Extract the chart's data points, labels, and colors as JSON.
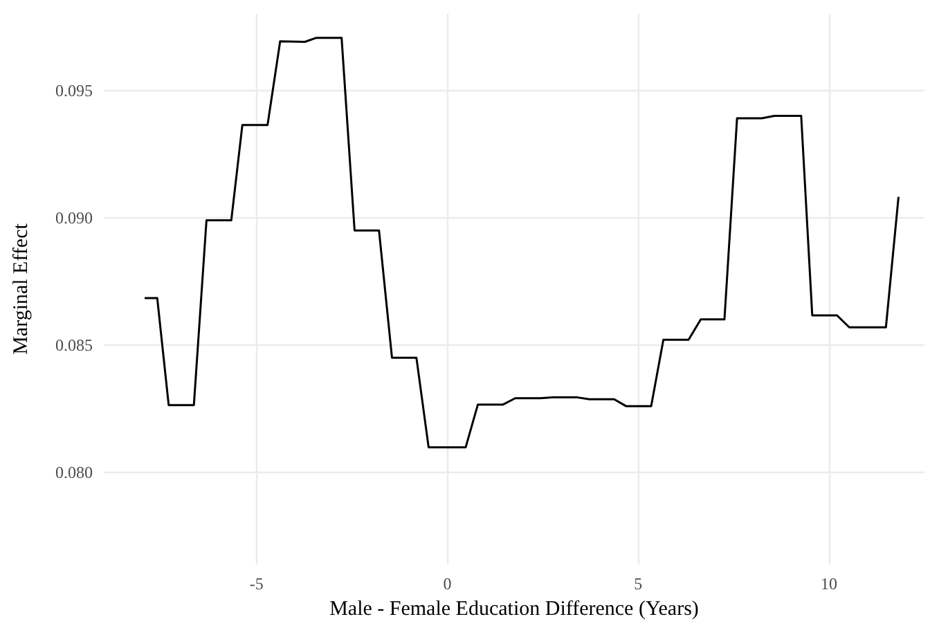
{
  "chart_data": {
    "type": "line",
    "xlabel": "Male - Female Education Difference (Years)",
    "ylabel": "Marginal Effect",
    "series": [
      {
        "color": "#000000",
        "x": [
          -7.93,
          -7.6,
          -7.3,
          -6.64,
          -6.31,
          -5.66,
          -5.37,
          -4.71,
          -4.38,
          -3.73,
          -3.43,
          -2.77,
          -2.43,
          -1.79,
          -1.45,
          -0.81,
          -0.49,
          0.48,
          0.8,
          1.46,
          1.78,
          2.44,
          2.76,
          3.41,
          3.72,
          4.37,
          4.68,
          5.34,
          5.66,
          6.32,
          6.64,
          7.26,
          7.59,
          8.24,
          8.57,
          9.27,
          9.56,
          10.21,
          10.53,
          11.49,
          11.82
        ],
        "values": [
          0.08685,
          0.08685,
          0.08265,
          0.08265,
          0.0899,
          0.0899,
          0.09364,
          0.09364,
          0.09692,
          0.0969,
          0.09706,
          0.09706,
          0.0895,
          0.0895,
          0.08451,
          0.08451,
          0.08099,
          0.08099,
          0.08267,
          0.08267,
          0.08292,
          0.08292,
          0.08295,
          0.08295,
          0.08288,
          0.08288,
          0.08261,
          0.08261,
          0.08521,
          0.08521,
          0.08601,
          0.08601,
          0.0939,
          0.0939,
          0.094,
          0.094,
          0.08617,
          0.08617,
          0.0857,
          0.0857,
          0.09082
        ]
      }
    ],
    "xlim": [
      -9,
      12.5
    ],
    "xticks": [
      -5,
      0,
      5,
      10
    ],
    "ylim": [
      0.0764,
      0.098
    ],
    "yticks": [
      {
        "value": 0.08,
        "label": "0.080"
      },
      0.085,
      {
        "value": 0.09,
        "label": "0.090"
      },
      0.095
    ],
    "grid": true,
    "marker": "none",
    "line_style": "solid"
  }
}
